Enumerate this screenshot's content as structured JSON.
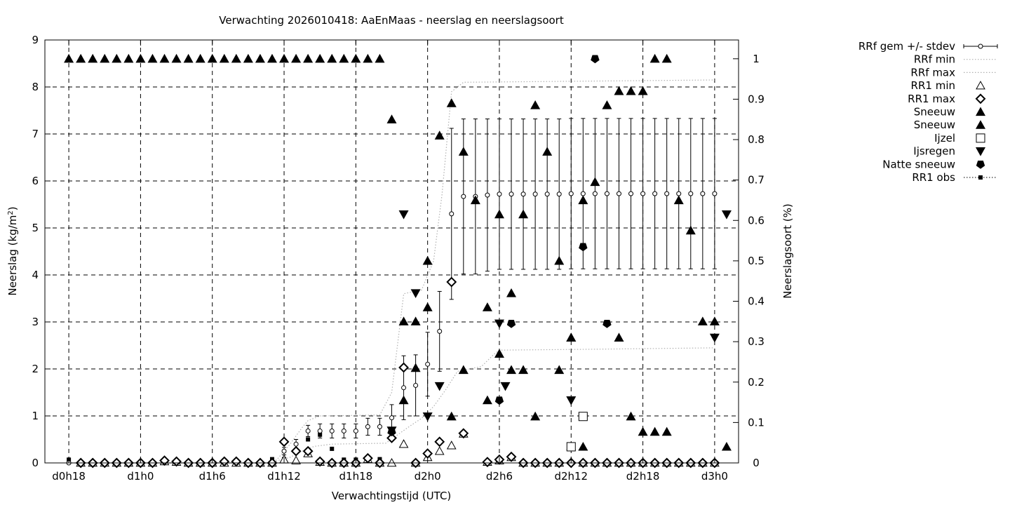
{
  "chart_data": {
    "type": "scatter",
    "title": "Verwachting 2026010418: AaEnMaas - neerslag en neerslagsoort",
    "xlabel": "Verwachtingstijd (UTC)",
    "ylabel_left": "Neerslag (kg/m",
    "ylabel_left_sup": "2",
    "ylabel_left_end": ")",
    "ylabel_right": "Neerslagsoort (%)",
    "x_range": [
      -2,
      56
    ],
    "y_left_range": [
      0,
      9
    ],
    "y_right_range": [
      0,
      1.0465
    ],
    "y_left_ticks": [
      0,
      1,
      2,
      3,
      4,
      5,
      6,
      7,
      8,
      9
    ],
    "y_right_ticks": [
      {
        "v": 0,
        "label": "0"
      },
      {
        "v": 0.1,
        "label": "0.1"
      },
      {
        "v": 0.2,
        "label": "0.2"
      },
      {
        "v": 0.3,
        "label": "0.3"
      },
      {
        "v": 0.4,
        "label": "0.4"
      },
      {
        "v": 0.5,
        "label": "0.5"
      },
      {
        "v": 0.6,
        "label": "0.6"
      },
      {
        "v": 0.7,
        "label": "0.7"
      },
      {
        "v": 0.8,
        "label": "0.8"
      },
      {
        "v": 0.9,
        "label": "0.9"
      },
      {
        "v": 1.0,
        "label": "1"
      }
    ],
    "x_ticks": [
      {
        "v": 0,
        "label": "d0h18"
      },
      {
        "v": 6,
        "label": "d1h0"
      },
      {
        "v": 12,
        "label": "d1h6"
      },
      {
        "v": 18,
        "label": "d1h12"
      },
      {
        "v": 24,
        "label": "d1h18"
      },
      {
        "v": 30,
        "label": "d2h0"
      },
      {
        "v": 36,
        "label": "d2h6"
      },
      {
        "v": 42,
        "label": "d2h12"
      },
      {
        "v": 48,
        "label": "d2h18"
      },
      {
        "v": 54,
        "label": "d3h0"
      }
    ],
    "grid": true,
    "legend_position": "outside-right",
    "legend": [
      {
        "key": "rrf",
        "label": "RRf gem +/- stdev"
      },
      {
        "key": "rrfmin",
        "label": "RRf min"
      },
      {
        "key": "rrfmax",
        "label": "RRf max"
      },
      {
        "key": "rr1min",
        "label": "RR1 min"
      },
      {
        "key": "rr1max",
        "label": "RR1 max"
      },
      {
        "key": "snow1",
        "label": "Sneeuw"
      },
      {
        "key": "snow2",
        "label": "Sneeuw"
      },
      {
        "key": "ijzel",
        "label": "Ijzel"
      },
      {
        "key": "ijsregen",
        "label": "Ijsregen"
      },
      {
        "key": "natte",
        "label": "Natte sneeuw"
      },
      {
        "key": "obs",
        "label": "RR1 obs"
      }
    ],
    "rrf_mean": [
      [
        0,
        0
      ],
      [
        1,
        0
      ],
      [
        2,
        0
      ],
      [
        3,
        0
      ],
      [
        4,
        0
      ],
      [
        5,
        0
      ],
      [
        6,
        0
      ],
      [
        7,
        0
      ],
      [
        8,
        0
      ],
      [
        9,
        0
      ],
      [
        10,
        0
      ],
      [
        11,
        0
      ],
      [
        12,
        0
      ],
      [
        13,
        0
      ],
      [
        14,
        0
      ],
      [
        15,
        0
      ],
      [
        16,
        0
      ],
      [
        17,
        0
      ],
      [
        18,
        0.25
      ],
      [
        19,
        0.4
      ],
      [
        20,
        0.68
      ],
      [
        21,
        0.68
      ],
      [
        22,
        0.68
      ],
      [
        23,
        0.68
      ],
      [
        24,
        0.68
      ],
      [
        25,
        0.77
      ],
      [
        26,
        0.77
      ],
      [
        27,
        0.96
      ],
      [
        28,
        1.6
      ],
      [
        29,
        1.65
      ],
      [
        30,
        2.1
      ],
      [
        31,
        2.8
      ],
      [
        32,
        5.3
      ],
      [
        33,
        5.67
      ],
      [
        34,
        5.67
      ],
      [
        35,
        5.7
      ],
      [
        36,
        5.72
      ],
      [
        37,
        5.72
      ],
      [
        38,
        5.72
      ],
      [
        39,
        5.72
      ],
      [
        40,
        5.72
      ],
      [
        41,
        5.72
      ],
      [
        42,
        5.73
      ],
      [
        43,
        5.73
      ],
      [
        44,
        5.73
      ],
      [
        45,
        5.73
      ],
      [
        46,
        5.73
      ],
      [
        47,
        5.73
      ],
      [
        48,
        5.73
      ],
      [
        49,
        5.73
      ],
      [
        50,
        5.73
      ],
      [
        51,
        5.73
      ],
      [
        52,
        5.73
      ],
      [
        53,
        5.73
      ],
      [
        54,
        5.73
      ]
    ],
    "rrf_std": [
      [
        18,
        0.08
      ],
      [
        19,
        0.1
      ],
      [
        20,
        0.12
      ],
      [
        21,
        0.15
      ],
      [
        22,
        0.15
      ],
      [
        23,
        0.15
      ],
      [
        24,
        0.15
      ],
      [
        25,
        0.18
      ],
      [
        26,
        0.18
      ],
      [
        27,
        0.28
      ],
      [
        28,
        0.68
      ],
      [
        29,
        0.65
      ],
      [
        30,
        0.68
      ],
      [
        31,
        0.85
      ],
      [
        32,
        1.82
      ],
      [
        33,
        1.65
      ],
      [
        34,
        1.65
      ],
      [
        35,
        1.62
      ],
      [
        36,
        1.6
      ],
      [
        37,
        1.6
      ],
      [
        38,
        1.6
      ],
      [
        39,
        1.6
      ],
      [
        40,
        1.6
      ],
      [
        41,
        1.6
      ],
      [
        42,
        1.6
      ],
      [
        43,
        1.6
      ],
      [
        44,
        1.6
      ],
      [
        45,
        1.6
      ],
      [
        46,
        1.6
      ],
      [
        47,
        1.6
      ],
      [
        48,
        1.6
      ],
      [
        49,
        1.6
      ],
      [
        50,
        1.6
      ],
      [
        51,
        1.6
      ],
      [
        52,
        1.6
      ],
      [
        53,
        1.6
      ],
      [
        54,
        1.6
      ]
    ],
    "rrf_min": [
      [
        0,
        0
      ],
      [
        17,
        0
      ],
      [
        17.5,
        0.05
      ],
      [
        18.5,
        0.12
      ],
      [
        19.5,
        0.25
      ],
      [
        20.5,
        0.35
      ],
      [
        22,
        0.4
      ],
      [
        26.5,
        0.42
      ],
      [
        27.5,
        0.6
      ],
      [
        28.5,
        0.78
      ],
      [
        29.5,
        0.95
      ],
      [
        30.5,
        1.2
      ],
      [
        31.5,
        1.55
      ],
      [
        32.5,
        1.95
      ],
      [
        34.5,
        2.05
      ],
      [
        35.5,
        2.3
      ],
      [
        36,
        2.4
      ],
      [
        44,
        2.42
      ],
      [
        54,
        2.45
      ]
    ],
    "rrf_max": [
      [
        0,
        0
      ],
      [
        17,
        0
      ],
      [
        17.5,
        0.1
      ],
      [
        18.5,
        0.4
      ],
      [
        19.5,
        0.75
      ],
      [
        20,
        0.9
      ],
      [
        21,
        1.0
      ],
      [
        26,
        1.02
      ],
      [
        27,
        1.5
      ],
      [
        28,
        3.6
      ],
      [
        29.5,
        3.68
      ],
      [
        30.5,
        4.3
      ],
      [
        31.2,
        5.7
      ],
      [
        32,
        7.9
      ],
      [
        33,
        8.1
      ],
      [
        54,
        8.15
      ]
    ],
    "rr1_min": [
      [
        1,
        0
      ],
      [
        2,
        0
      ],
      [
        3,
        0
      ],
      [
        4,
        0
      ],
      [
        5,
        0
      ],
      [
        6,
        0
      ],
      [
        7,
        0
      ],
      [
        8,
        0.03
      ],
      [
        9,
        0.02
      ],
      [
        10,
        0
      ],
      [
        11,
        0
      ],
      [
        12,
        0
      ],
      [
        13,
        0
      ],
      [
        14,
        0
      ],
      [
        15,
        0
      ],
      [
        16,
        0
      ],
      [
        17,
        0
      ],
      [
        18,
        0.07
      ],
      [
        19,
        0.05
      ],
      [
        20,
        0.2
      ],
      [
        21,
        0.02
      ],
      [
        22,
        0
      ],
      [
        23,
        0
      ],
      [
        24,
        0
      ],
      [
        25,
        0.08
      ],
      [
        26,
        0
      ],
      [
        27,
        0
      ],
      [
        28,
        0.4
      ],
      [
        29,
        0
      ],
      [
        30,
        0.12
      ],
      [
        31,
        0.25
      ],
      [
        32,
        0.37
      ],
      [
        33,
        0.62
      ],
      [
        35,
        0.02
      ],
      [
        36,
        0.05
      ],
      [
        37,
        0.12
      ],
      [
        38,
        0
      ],
      [
        39,
        0
      ],
      [
        40,
        0
      ],
      [
        41,
        0
      ],
      [
        42,
        0.35
      ],
      [
        43,
        0
      ],
      [
        44,
        0
      ],
      [
        45,
        0
      ],
      [
        46,
        0
      ],
      [
        47,
        0
      ],
      [
        48,
        0
      ],
      [
        49,
        0
      ],
      [
        50,
        0
      ],
      [
        51,
        0
      ],
      [
        52,
        0
      ],
      [
        53,
        0
      ],
      [
        54,
        0
      ]
    ],
    "rr1_max": [
      [
        1,
        0
      ],
      [
        2,
        0
      ],
      [
        3,
        0
      ],
      [
        4,
        0
      ],
      [
        5,
        0
      ],
      [
        6,
        0
      ],
      [
        7,
        0
      ],
      [
        8,
        0.05
      ],
      [
        9,
        0.03
      ],
      [
        10,
        0
      ],
      [
        11,
        0
      ],
      [
        12,
        0
      ],
      [
        13,
        0.03
      ],
      [
        14,
        0.03
      ],
      [
        15,
        0
      ],
      [
        16,
        0
      ],
      [
        17,
        0
      ],
      [
        18,
        0.45
      ],
      [
        19,
        0.25
      ],
      [
        20,
        0.25
      ],
      [
        21,
        0.03
      ],
      [
        22,
        0
      ],
      [
        23,
        0
      ],
      [
        24,
        0
      ],
      [
        25,
        0.1
      ],
      [
        26,
        0
      ],
      [
        27,
        0.53
      ],
      [
        28,
        2.03
      ],
      [
        29,
        0
      ],
      [
        30,
        0.2
      ],
      [
        31,
        0.45
      ],
      [
        32,
        3.85
      ],
      [
        33,
        0.63
      ],
      [
        35,
        0.02
      ],
      [
        36,
        0.07
      ],
      [
        37,
        0.13
      ],
      [
        38,
        0
      ],
      [
        39,
        0
      ],
      [
        40,
        0
      ],
      [
        41,
        0
      ],
      [
        42,
        0
      ],
      [
        43,
        0
      ],
      [
        44,
        0
      ],
      [
        45,
        0
      ],
      [
        46,
        0
      ],
      [
        47,
        0
      ],
      [
        48,
        0
      ],
      [
        49,
        0
      ],
      [
        50,
        0
      ],
      [
        51,
        0
      ],
      [
        52,
        0
      ],
      [
        53,
        0
      ],
      [
        54,
        0
      ]
    ],
    "sneeuw_1": [
      [
        0,
        1.0
      ],
      [
        1,
        1.0
      ],
      [
        2,
        1.0
      ],
      [
        3,
        1.0
      ],
      [
        4,
        1.0
      ],
      [
        5,
        1.0
      ],
      [
        6,
        1.0
      ],
      [
        7,
        1.0
      ],
      [
        8,
        1.0
      ],
      [
        9,
        1.0
      ],
      [
        10,
        1.0
      ],
      [
        11,
        1.0
      ],
      [
        12,
        1.0
      ],
      [
        13,
        1.0
      ],
      [
        14,
        1.0
      ],
      [
        15,
        1.0
      ],
      [
        16,
        1.0
      ],
      [
        17,
        1.0
      ],
      [
        18,
        1.0
      ],
      [
        19,
        1.0
      ],
      [
        20,
        1.0
      ],
      [
        21,
        1.0
      ],
      [
        22,
        1.0
      ],
      [
        23,
        1.0
      ],
      [
        24,
        1.0
      ],
      [
        25,
        1.0
      ],
      [
        26,
        1.0
      ],
      [
        27,
        0.85
      ],
      [
        28,
        0.35
      ],
      [
        29,
        0.35
      ],
      [
        30,
        0.5
      ],
      [
        31,
        0.81
      ],
      [
        32,
        0.89
      ],
      [
        33,
        0.77
      ],
      [
        34,
        0.65
      ],
      [
        35,
        0.385
      ],
      [
        36,
        0.615
      ],
      [
        37,
        0.42
      ],
      [
        38,
        0.615
      ],
      [
        39,
        0.885
      ],
      [
        40,
        0.77
      ],
      [
        41,
        0.5
      ],
      [
        42,
        0.31
      ],
      [
        43,
        0.65
      ],
      [
        44,
        0.695
      ],
      [
        45,
        0.885
      ],
      [
        46,
        0.92
      ],
      [
        47,
        0.92
      ],
      [
        48,
        0.92
      ],
      [
        49,
        1.0
      ],
      [
        50,
        1.0
      ],
      [
        51,
        0.65
      ],
      [
        52,
        0.575
      ],
      [
        53,
        0.35
      ]
    ],
    "sneeuw_2": [
      [
        28,
        0.155
      ],
      [
        29,
        0.235
      ],
      [
        30,
        0.385
      ],
      [
        32,
        0.115
      ],
      [
        33,
        0.23
      ],
      [
        35,
        0.155
      ],
      [
        36,
        0.27
      ],
      [
        37,
        0.23
      ],
      [
        38,
        0.23
      ],
      [
        39,
        0.115
      ],
      [
        41,
        0.23
      ],
      [
        42,
        0.31
      ],
      [
        43,
        0.04
      ],
      [
        46,
        0.31
      ],
      [
        47,
        0.115
      ],
      [
        48,
        0.077
      ],
      [
        49,
        0.077
      ],
      [
        50,
        0.077
      ],
      [
        54,
        0.35
      ],
      [
        55,
        0.04
      ]
    ],
    "ijzel": [
      [
        42,
        0.04
      ],
      [
        43,
        0.115
      ]
    ],
    "ijsregen": [
      [
        27,
        0.08
      ],
      [
        28,
        0.615
      ],
      [
        29,
        0.42
      ],
      [
        30,
        0.115
      ],
      [
        31,
        0.19
      ],
      [
        36,
        0.345
      ],
      [
        36.5,
        0.19
      ],
      [
        42,
        0.155
      ],
      [
        54,
        0.31
      ],
      [
        55,
        0.615
      ]
    ],
    "natte_sneeuw": [
      [
        27,
        0.077
      ],
      [
        36,
        0.155
      ],
      [
        37,
        0.345
      ],
      [
        43,
        0.535
      ],
      [
        44,
        1.0
      ],
      [
        45,
        0.345
      ]
    ],
    "rr1_obs": [
      [
        0,
        0.07
      ],
      [
        17,
        0.08
      ],
      [
        18,
        0.08
      ],
      [
        19,
        0.27
      ],
      [
        20,
        0.5
      ],
      [
        21,
        0.6
      ],
      [
        22,
        0.3
      ],
      [
        23,
        0.07
      ],
      [
        24,
        0.07
      ],
      [
        25,
        0.1
      ],
      [
        26,
        0.08
      ]
    ]
  }
}
